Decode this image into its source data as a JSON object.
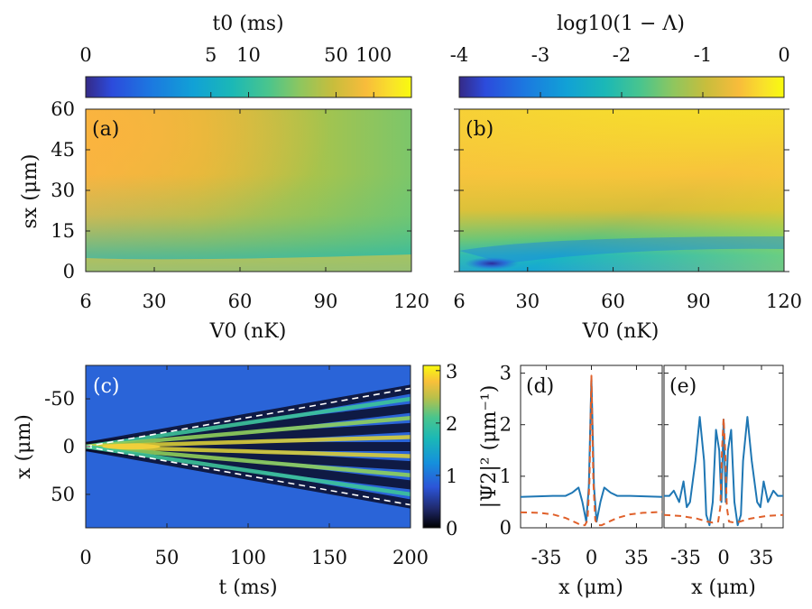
{
  "colormap": [
    "#352a87",
    "#2c4bdc",
    "#1c78e0",
    "#11a1d6",
    "#1bb8b6",
    "#4ac58d",
    "#8fc65e",
    "#c8bd3c",
    "#f8bc3b",
    "#f9e22a",
    "#f9fb0e"
  ],
  "chart_data": [
    {
      "id": "cbar_a",
      "type": "heatmap",
      "title": "t0 (ms)",
      "scale": "log",
      "range": [
        0.5,
        200
      ],
      "tick_labels": [
        "0",
        "5",
        "10",
        "50",
        "100"
      ],
      "tick_values": [
        0.5,
        5,
        10,
        50,
        100
      ]
    },
    {
      "id": "cbar_b",
      "type": "heatmap",
      "title": "log10(1 − Λ)",
      "range": [
        -4,
        0
      ],
      "tick_labels": [
        "-4",
        "-3",
        "-2",
        "-1",
        "0"
      ],
      "tick_values": [
        -4,
        -3,
        -2,
        -1,
        0
      ]
    },
    {
      "id": "panel_a",
      "type": "heatmap",
      "panel_label": "(a)",
      "xlabel": "V0 (nK)",
      "ylabel": "sx (μm)",
      "xlim": [
        6,
        120
      ],
      "ylim": [
        0,
        60
      ],
      "xticks": [
        "6",
        "30",
        "60",
        "90",
        "120"
      ],
      "yticks": [
        "0",
        "15",
        "30",
        "45",
        "60"
      ]
    },
    {
      "id": "panel_b",
      "type": "heatmap",
      "panel_label": "(b)",
      "xlabel": "V0 (nK)",
      "xlim": [
        6,
        120
      ],
      "ylim": [
        0,
        60
      ],
      "xticks": [
        "6",
        "30",
        "60",
        "90",
        "120"
      ],
      "minimum_at": {
        "V0": 18,
        "sx": 3
      }
    },
    {
      "id": "panel_c",
      "type": "heatmap",
      "panel_label": "(c)",
      "xlabel": "t (ms)",
      "ylabel": "x (μm)",
      "xlim": [
        0,
        200
      ],
      "ylim": [
        -85,
        85
      ],
      "xticks": [
        "0",
        "50",
        "100",
        "150",
        "200"
      ],
      "yticks": [
        "-50",
        "0",
        "50"
      ],
      "colorbar_range": [
        0,
        3.1
      ],
      "colorbar_ticks": [
        "0",
        "1",
        "2",
        "3"
      ],
      "dashed_lines": [
        {
          "x": [
            0,
            200
          ],
          "y": [
            0,
            -61
          ]
        },
        {
          "x": [
            0,
            200
          ],
          "y": [
            0,
            61
          ]
        }
      ]
    },
    {
      "id": "panel_d",
      "type": "line",
      "panel_label": "(d)",
      "xlabel": "x (μm)",
      "ylabel": "|Ψ2|² (μm⁻¹)",
      "xlim": [
        -55,
        55
      ],
      "ylim": [
        0,
        3.15
      ],
      "xticks": [
        "-35",
        "0",
        "35"
      ],
      "yticks": [
        "0",
        "1",
        "2",
        "3"
      ],
      "series": [
        {
          "style": "solid",
          "color": "#1f77b4",
          "x": [
            -55,
            -30,
            -20,
            -15,
            -10,
            -7,
            -4,
            -2,
            0,
            2,
            4,
            7,
            10,
            15,
            20,
            30,
            55
          ],
          "values": [
            0.6,
            0.62,
            0.62,
            0.68,
            0.78,
            0.5,
            0.12,
            0.8,
            2.9,
            0.8,
            0.12,
            0.5,
            0.78,
            0.68,
            0.62,
            0.62,
            0.6
          ]
        },
        {
          "style": "dashed",
          "color": "#e0602a",
          "x": [
            -55,
            -40,
            -30,
            -20,
            -12,
            -8,
            -5,
            -3,
            -1.5,
            0,
            1.5,
            3,
            5,
            8,
            12,
            20,
            30,
            40,
            55
          ],
          "values": [
            0.3,
            0.29,
            0.26,
            0.19,
            0.1,
            0.05,
            0.05,
            0.15,
            0.9,
            2.95,
            0.9,
            0.15,
            0.05,
            0.05,
            0.1,
            0.19,
            0.26,
            0.29,
            0.31
          ]
        }
      ]
    },
    {
      "id": "panel_e",
      "type": "line",
      "panel_label": "(e)",
      "xlabel": "x (μm)",
      "xlim": [
        -55,
        55
      ],
      "ylim": [
        0,
        3.15
      ],
      "xticks": [
        "-35",
        "0",
        "35"
      ],
      "series": [
        {
          "style": "solid",
          "color": "#1f77b4",
          "x": [
            -55,
            -50,
            -46,
            -41,
            -37,
            -34,
            -31,
            -26,
            -22,
            -18,
            -16,
            -13,
            -10,
            -7,
            -4,
            -2,
            0,
            2,
            4,
            7,
            10,
            13,
            16,
            18,
            22,
            26,
            31,
            34,
            37,
            41,
            46,
            50,
            55
          ],
          "values": [
            0.62,
            0.62,
            0.72,
            0.5,
            0.9,
            0.4,
            0.5,
            1.3,
            2.15,
            1.3,
            0.25,
            0.05,
            0.5,
            1.9,
            1.5,
            0.5,
            2.1,
            0.5,
            1.5,
            1.9,
            0.5,
            0.05,
            0.25,
            1.3,
            2.15,
            1.3,
            0.5,
            0.4,
            0.9,
            0.5,
            0.72,
            0.62,
            0.62
          ]
        },
        {
          "style": "dashed",
          "color": "#e0602a",
          "x": [
            -55,
            -40,
            -25,
            -15,
            -10,
            -5,
            -3,
            -1.5,
            0,
            1.5,
            3,
            5,
            10,
            15,
            25,
            40,
            55
          ],
          "values": [
            0.25,
            0.23,
            0.18,
            0.12,
            0.1,
            0.12,
            0.4,
            1.5,
            2.12,
            1.5,
            0.4,
            0.12,
            0.1,
            0.12,
            0.18,
            0.23,
            0.25
          ]
        }
      ]
    }
  ]
}
